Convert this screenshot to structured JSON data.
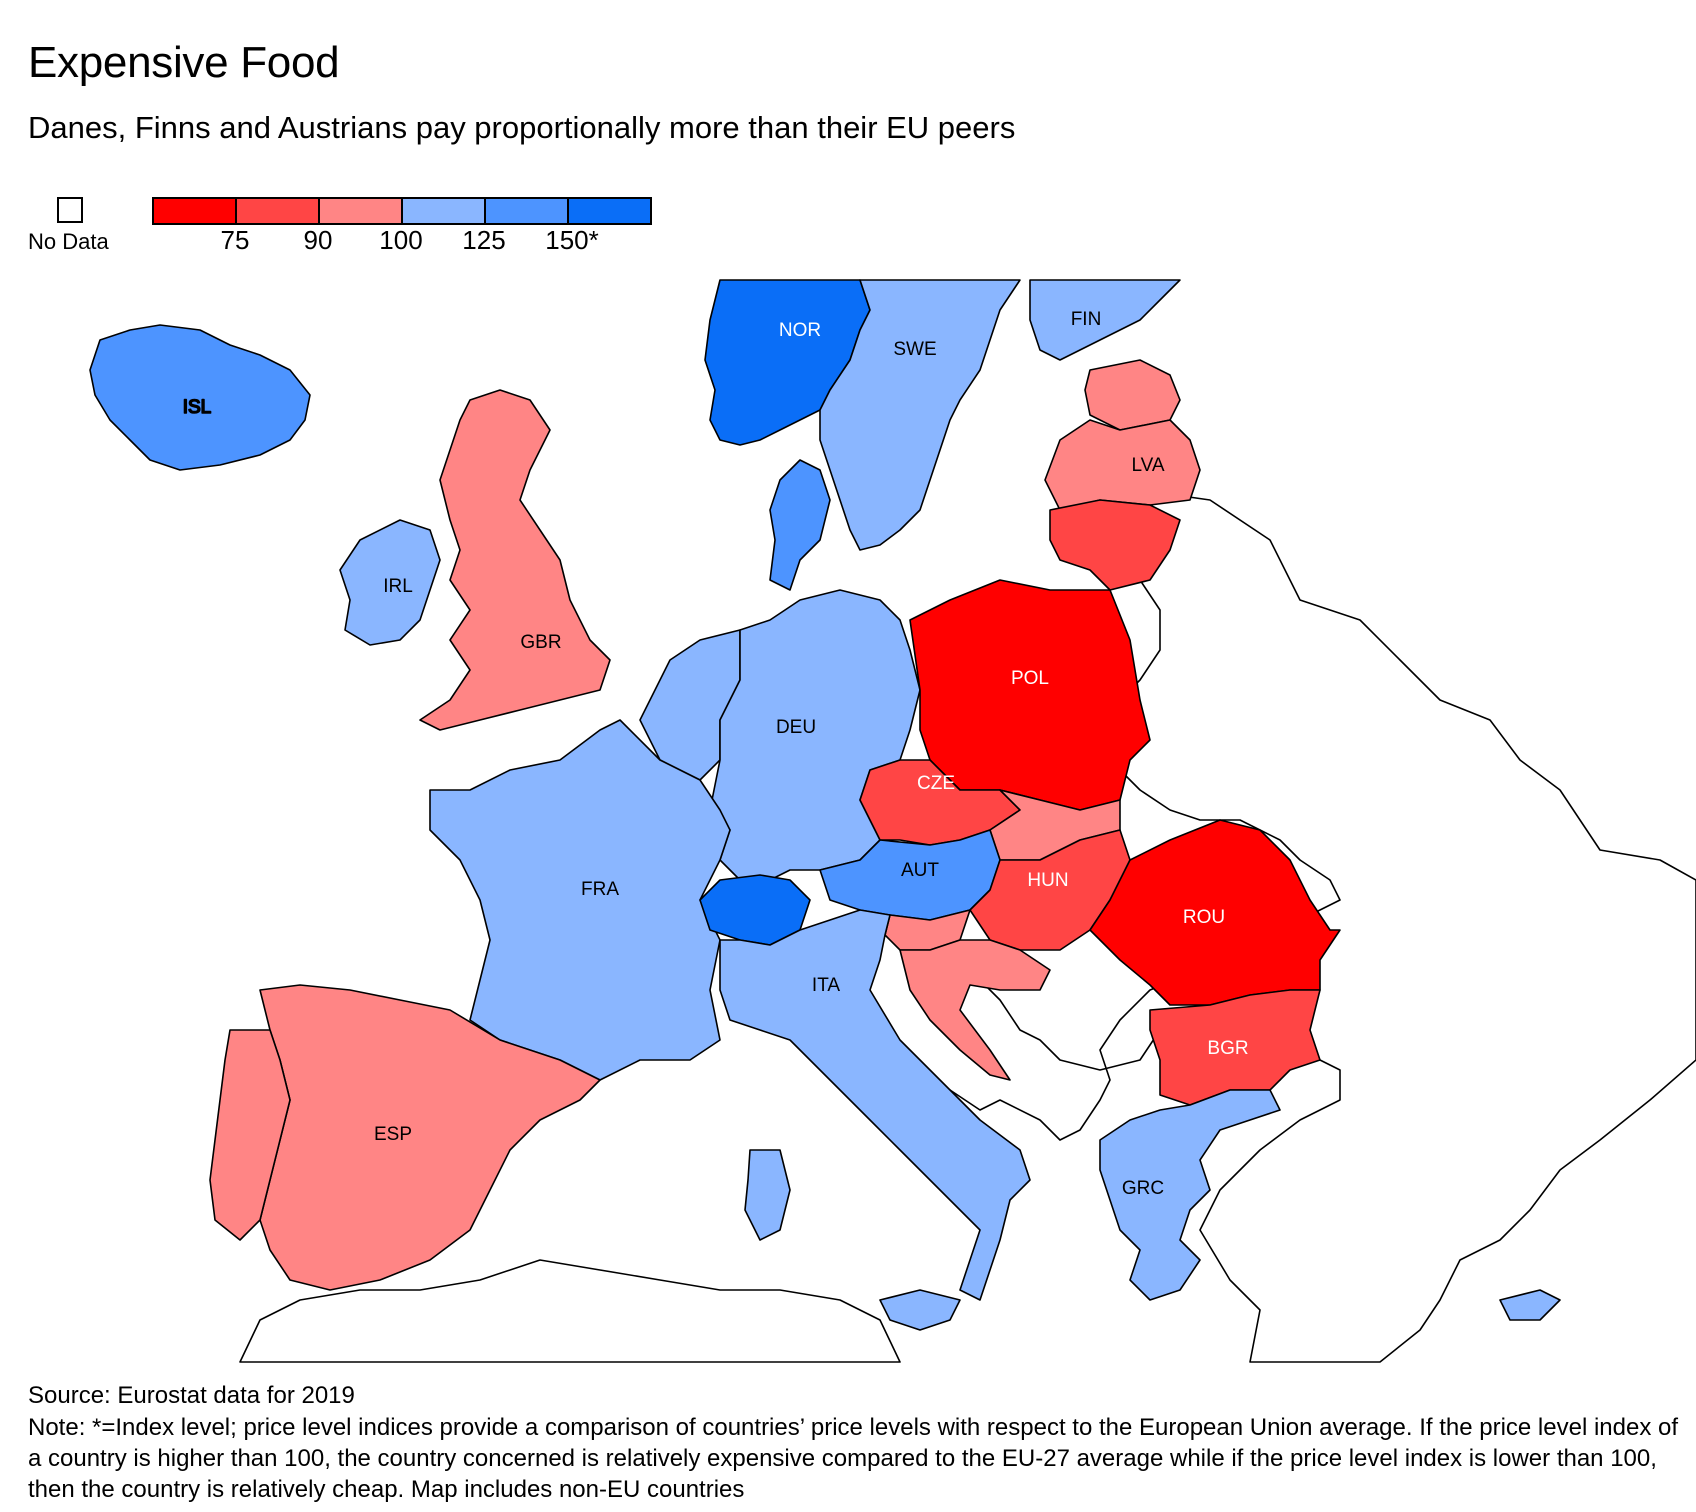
{
  "title": "Expensive Food",
  "subtitle": "Danes, Finns and Austrians pay proportionally more than their EU peers",
  "legend": {
    "no_data_label": "No Data",
    "bins": [
      "#ff0000",
      "#ff4545",
      "#ff8585",
      "#8ab6ff",
      "#4d94ff",
      "#0a6ef7"
    ],
    "ticks": [
      "75",
      "90",
      "100",
      "125",
      "150*"
    ]
  },
  "countries": [
    {
      "code": "ISL",
      "color": "#4d94ff",
      "label_color": "#000"
    },
    {
      "code": "NOR",
      "color": "#0a6ef7",
      "label_color": "#fff"
    },
    {
      "code": "SWE",
      "color": "#8ab6ff",
      "label_color": "#000"
    },
    {
      "code": "FIN",
      "color": "#8ab6ff",
      "label_color": "#000"
    },
    {
      "code": "LVA",
      "color": "#ff8585",
      "label_color": "#000"
    },
    {
      "code": "IRL",
      "color": "#8ab6ff",
      "label_color": "#000"
    },
    {
      "code": "GBR",
      "color": "#ff8585",
      "label_color": "#000"
    },
    {
      "code": "POL",
      "color": "#ff0000",
      "label_color": "#fff"
    },
    {
      "code": "DEU",
      "color": "#8ab6ff",
      "label_color": "#000"
    },
    {
      "code": "CZE",
      "color": "#ff4545",
      "label_color": "#fff"
    },
    {
      "code": "AUT",
      "color": "#4d94ff",
      "label_color": "#000"
    },
    {
      "code": "HUN",
      "color": "#ff4545",
      "label_color": "#fff"
    },
    {
      "code": "FRA",
      "color": "#8ab6ff",
      "label_color": "#000"
    },
    {
      "code": "ROU",
      "color": "#ff0000",
      "label_color": "#fff"
    },
    {
      "code": "ITA",
      "color": "#8ab6ff",
      "label_color": "#000"
    },
    {
      "code": "BGR",
      "color": "#ff4545",
      "label_color": "#fff"
    },
    {
      "code": "ESP",
      "color": "#ff8585",
      "label_color": "#000"
    },
    {
      "code": "GRC",
      "color": "#8ab6ff",
      "label_color": "#000"
    }
  ],
  "unlabeled_colors": {
    "denmark": "#4d94ff",
    "switzerland": "#0a6ef7",
    "estonia": "#ff8585",
    "lithuania": "#ff4545",
    "slovakia": "#ff8585",
    "croatia": "#ff8585",
    "slovenia": "#ff8585",
    "portugal": "#ff8585",
    "netherlands": "#8ab6ff",
    "belgium": "#8ab6ff",
    "cyprus": "#8ab6ff"
  },
  "source": "Source: Eurostat data for 2019",
  "note": "Note: *=Index level; price level indices provide a comparison of countries’ price levels with respect to the European Union average. If the price level index of a country is higher than 100, the country concerned is relatively expensive compared to the EU-27 average while if the price level index is lower than 100, then the country is relatively cheap. Map includes non-EU countries"
}
